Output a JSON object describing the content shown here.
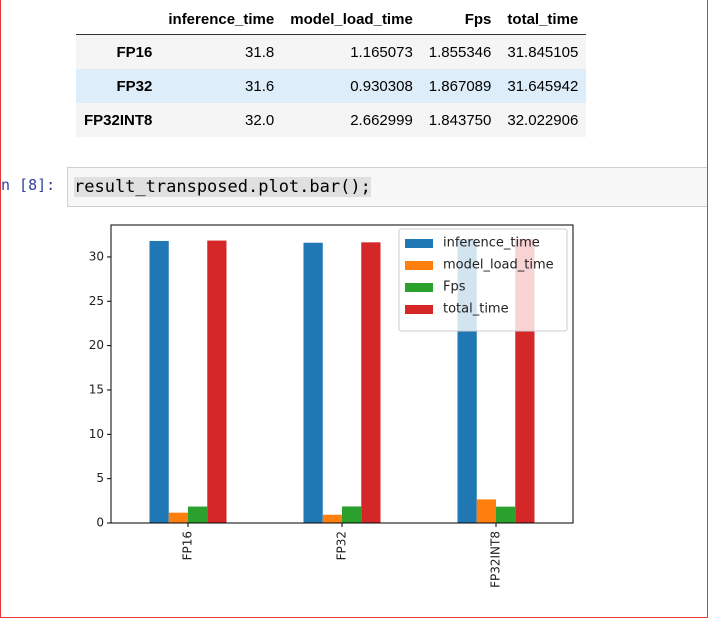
{
  "table": {
    "columns": [
      "inference_time",
      "model_load_time",
      "Fps",
      "total_time"
    ],
    "rows": [
      {
        "index": "FP16",
        "cells": [
          "31.8",
          "1.165073",
          "1.855346",
          "31.845105"
        ]
      },
      {
        "index": "FP32",
        "cells": [
          "31.6",
          "0.930308",
          "1.867089",
          "31.645942"
        ]
      },
      {
        "index": "FP32INT8",
        "cells": [
          "32.0",
          "2.662999",
          "1.843750",
          "32.022906"
        ]
      }
    ]
  },
  "cell": {
    "prompt": "n [8]:",
    "code": "result_transposed.plot.bar();"
  },
  "chart_data": {
    "type": "bar",
    "categories": [
      "FP16",
      "FP32",
      "FP32INT8"
    ],
    "series": [
      {
        "name": "inference_time",
        "color": "#1f77b4",
        "values": [
          31.8,
          31.6,
          32.0
        ]
      },
      {
        "name": "model_load_time",
        "color": "#ff7f0e",
        "values": [
          1.165073,
          0.930308,
          2.662999
        ]
      },
      {
        "name": "Fps",
        "color": "#2ca02c",
        "values": [
          1.855346,
          1.867089,
          1.84375
        ]
      },
      {
        "name": "total_time",
        "color": "#d62728",
        "values": [
          31.845105,
          31.645942,
          32.022906
        ]
      }
    ],
    "ylim": [
      0,
      33.6
    ],
    "yticks": [
      0,
      5,
      10,
      15,
      20,
      25,
      30
    ],
    "legend": "upper-right"
  }
}
